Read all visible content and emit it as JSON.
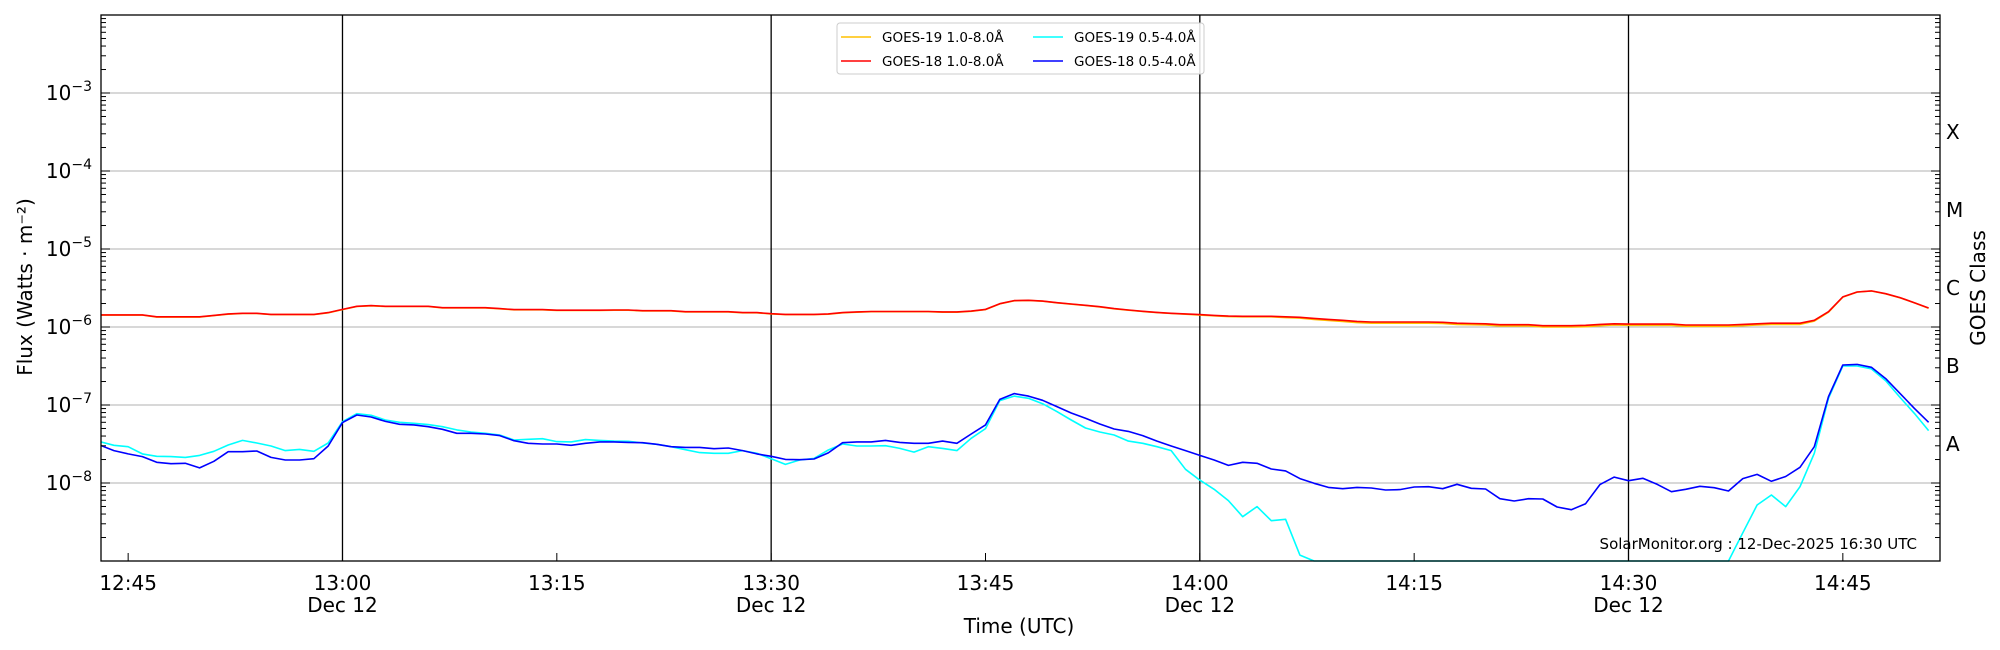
{
  "chart_data": {
    "type": "line",
    "title": "",
    "xlabel": "Time (UTC)",
    "ylabel": "Flux (Watts · m⁻²)",
    "ylabel_right": "GOES Class",
    "yscale": "log",
    "ylim": [
      1e-09,
      0.01
    ],
    "grid": "horizontal at each decade",
    "x_start_time": "12:43",
    "x_interval_minutes": 1,
    "xlim_minutes_from_start": [
      0.1,
      128.8
    ],
    "xticks": [
      {
        "minute": 2,
        "label": "12:45",
        "date": ""
      },
      {
        "minute": 17,
        "label": "13:00",
        "date": "Dec 12"
      },
      {
        "minute": 32,
        "label": "13:15",
        "date": ""
      },
      {
        "minute": 47,
        "label": "13:30",
        "date": "Dec 12"
      },
      {
        "minute": 62,
        "label": "13:45",
        "date": ""
      },
      {
        "minute": 77,
        "label": "14:00",
        "date": "Dec 12"
      },
      {
        "minute": 92,
        "label": "14:15",
        "date": ""
      },
      {
        "minute": 107,
        "label": "14:30",
        "date": "Dec 12"
      },
      {
        "minute": 122,
        "label": "14:45",
        "date": ""
      }
    ],
    "vertical_markers_minutes": [
      17,
      47,
      77,
      107
    ],
    "yticks": [
      {
        "value": 0.001,
        "base": "10",
        "exp": "−3"
      },
      {
        "value": 0.0001,
        "base": "10",
        "exp": "−4"
      },
      {
        "value": 1e-05,
        "base": "10",
        "exp": "−5"
      },
      {
        "value": 1e-06,
        "base": "10",
        "exp": "−6"
      },
      {
        "value": 1e-07,
        "base": "10",
        "exp": "−7"
      },
      {
        "value": 1e-08,
        "base": "10",
        "exp": "−8"
      }
    ],
    "goes_classes": [
      {
        "label": "X",
        "value": 0.000316
      },
      {
        "label": "M",
        "value": 3.16e-05
      },
      {
        "label": "C",
        "value": 3.16e-06
      },
      {
        "label": "B",
        "value": 3.16e-07
      },
      {
        "label": "A",
        "value": 3.16e-08
      }
    ],
    "legend": {
      "placement": "top-center",
      "columns": 2
    },
    "series": [
      {
        "name": "GOES-19 1.0-8.0Å",
        "color": "#ffc000",
        "values": [
          1.42e-06,
          1.42e-06,
          1.42e-06,
          1.42e-06,
          1.34e-06,
          1.34e-06,
          1.34e-06,
          1.34e-06,
          1.4e-06,
          1.46e-06,
          1.49e-06,
          1.49e-06,
          1.44e-06,
          1.44e-06,
          1.44e-06,
          1.44e-06,
          1.52e-06,
          1.67e-06,
          1.83e-06,
          1.87e-06,
          1.83e-06,
          1.83e-06,
          1.83e-06,
          1.83e-06,
          1.76e-06,
          1.76e-06,
          1.76e-06,
          1.76e-06,
          1.71e-06,
          1.66e-06,
          1.66e-06,
          1.66e-06,
          1.63e-06,
          1.63e-06,
          1.63e-06,
          1.63e-06,
          1.64e-06,
          1.64e-06,
          1.61e-06,
          1.61e-06,
          1.61e-06,
          1.56e-06,
          1.56e-06,
          1.56e-06,
          1.56e-06,
          1.52e-06,
          1.52e-06,
          1.47e-06,
          1.44e-06,
          1.44e-06,
          1.44e-06,
          1.46e-06,
          1.52e-06,
          1.55e-06,
          1.57e-06,
          1.57e-06,
          1.57e-06,
          1.57e-06,
          1.57e-06,
          1.55e-06,
          1.55e-06,
          1.59e-06,
          1.67e-06,
          1.98e-06,
          2.17e-06,
          2.19e-06,
          2.14e-06,
          2.04e-06,
          1.96e-06,
          1.89e-06,
          1.81e-06,
          1.71e-06,
          1.64e-06,
          1.58e-06,
          1.53e-06,
          1.49e-06,
          1.46e-06,
          1.42e-06,
          1.39e-06,
          1.36e-06,
          1.35e-06,
          1.35e-06,
          1.35e-06,
          1.32e-06,
          1.3e-06,
          1.25e-06,
          1.21e-06,
          1.18e-06,
          1.14e-06,
          1.12e-06,
          1.12e-06,
          1.12e-06,
          1.12e-06,
          1.12e-06,
          1.11e-06,
          1.08e-06,
          1.07e-06,
          1.06e-06,
          1.03e-06,
          1.03e-06,
          1.03e-06,
          1e-06,
          1e-06,
          1e-06,
          1.01e-06,
          1.04e-06,
          1.06e-06,
          1.05e-06,
          1.05e-06,
          1.05e-06,
          1.05e-06,
          1.02e-06,
          1.02e-06,
          1.02e-06,
          1.02e-06,
          1.04e-06,
          1.06e-06,
          1.08e-06,
          1.08e-06,
          1.08e-06,
          1.19e-06,
          1.55e-06,
          2.42e-06,
          2.8e-06,
          2.89e-06,
          2.66e-06,
          2.37e-06,
          2.04e-06,
          1.74e-06
        ]
      },
      {
        "name": "GOES-18 1.0-8.0Å",
        "color": "#ff0000",
        "values": [
          1.43e-06,
          1.43e-06,
          1.43e-06,
          1.43e-06,
          1.35e-06,
          1.35e-06,
          1.35e-06,
          1.35e-06,
          1.41e-06,
          1.47e-06,
          1.5e-06,
          1.5e-06,
          1.45e-06,
          1.45e-06,
          1.45e-06,
          1.45e-06,
          1.53e-06,
          1.68e-06,
          1.84e-06,
          1.88e-06,
          1.84e-06,
          1.84e-06,
          1.84e-06,
          1.84e-06,
          1.77e-06,
          1.77e-06,
          1.77e-06,
          1.77e-06,
          1.72e-06,
          1.67e-06,
          1.67e-06,
          1.67e-06,
          1.64e-06,
          1.64e-06,
          1.64e-06,
          1.64e-06,
          1.65e-06,
          1.65e-06,
          1.62e-06,
          1.62e-06,
          1.62e-06,
          1.57e-06,
          1.57e-06,
          1.57e-06,
          1.57e-06,
          1.53e-06,
          1.53e-06,
          1.48e-06,
          1.45e-06,
          1.45e-06,
          1.45e-06,
          1.47e-06,
          1.53e-06,
          1.56e-06,
          1.58e-06,
          1.58e-06,
          1.58e-06,
          1.58e-06,
          1.58e-06,
          1.56e-06,
          1.56e-06,
          1.6e-06,
          1.68e-06,
          1.99e-06,
          2.18e-06,
          2.2e-06,
          2.15e-06,
          2.05e-06,
          1.97e-06,
          1.9e-06,
          1.82e-06,
          1.72e-06,
          1.65e-06,
          1.59e-06,
          1.54e-06,
          1.5e-06,
          1.47e-06,
          1.44e-06,
          1.41e-06,
          1.38e-06,
          1.37e-06,
          1.37e-06,
          1.37e-06,
          1.35e-06,
          1.33e-06,
          1.29e-06,
          1.25e-06,
          1.22e-06,
          1.18e-06,
          1.16e-06,
          1.16e-06,
          1.16e-06,
          1.16e-06,
          1.16e-06,
          1.15e-06,
          1.12e-06,
          1.11e-06,
          1.1e-06,
          1.07e-06,
          1.07e-06,
          1.07e-06,
          1.04e-06,
          1.04e-06,
          1.04e-06,
          1.05e-06,
          1.08e-06,
          1.1e-06,
          1.09e-06,
          1.09e-06,
          1.09e-06,
          1.09e-06,
          1.06e-06,
          1.06e-06,
          1.06e-06,
          1.06e-06,
          1.08e-06,
          1.1e-06,
          1.12e-06,
          1.12e-06,
          1.12e-06,
          1.22e-06,
          1.57e-06,
          2.43e-06,
          2.81e-06,
          2.9e-06,
          2.67e-06,
          2.38e-06,
          2.05e-06,
          1.75e-06
        ]
      },
      {
        "name": "GOES-19 0.5-4.0Å",
        "color": "#00ffff",
        "values": [
          3.39e-08,
          3.04e-08,
          2.92e-08,
          2.36e-08,
          2.2e-08,
          2.18e-08,
          2.13e-08,
          2.26e-08,
          2.55e-08,
          3.07e-08,
          3.52e-08,
          3.26e-08,
          2.98e-08,
          2.6e-08,
          2.7e-08,
          2.55e-08,
          3.26e-08,
          6.11e-08,
          7.74e-08,
          7.38e-08,
          6.43e-08,
          6e-08,
          5.82e-08,
          5.6e-08,
          5.27e-08,
          4.79e-08,
          4.51e-08,
          4.34e-08,
          4.12e-08,
          3.56e-08,
          3.63e-08,
          3.7e-08,
          3.39e-08,
          3.36e-08,
          3.6e-08,
          3.52e-08,
          3.45e-08,
          3.42e-08,
          3.26e-08,
          3.13e-08,
          2.92e-08,
          2.67e-08,
          2.45e-08,
          2.4e-08,
          2.4e-08,
          2.6e-08,
          2.4e-08,
          2.05e-08,
          1.73e-08,
          1.97e-08,
          2.07e-08,
          2.65e-08,
          3.16e-08,
          2.98e-08,
          2.98e-08,
          3.01e-08,
          2.78e-08,
          2.49e-08,
          2.92e-08,
          2.78e-08,
          2.6e-08,
          3.74e-08,
          4.98e-08,
          1.14e-07,
          1.3e-07,
          1.22e-07,
          1.04e-07,
          8.22e-08,
          6.43e-08,
          5.07e-08,
          4.51e-08,
          4.12e-08,
          3.45e-08,
          3.23e-08,
          2.92e-08,
          2.6e-08,
          1.5e-08,
          1.09e-08,
          8.3e-09,
          5.94e-09,
          3.7e-09,
          4.98e-09,
          3.29e-09,
          3.42e-09,
          1.19e-09,
          1e-09,
          1e-09,
          1e-09,
          1e-09,
          1e-09,
          1e-09,
          1e-09,
          1e-09,
          1e-09,
          1e-09,
          1e-09,
          1e-09,
          1e-09,
          1e-09,
          1e-09,
          1e-09,
          1e-09,
          1e-09,
          1e-09,
          1e-09,
          1e-09,
          1e-09,
          1e-09,
          1e-09,
          1e-09,
          1e-09,
          1e-09,
          1e-09,
          1e-09,
          1e-09,
          2.3e-09,
          5.22e-09,
          7.01e-09,
          4.98e-09,
          8.97e-09,
          2.4e-08,
          1.22e-07,
          3.16e-07,
          3.16e-07,
          2.9e-07,
          2.05e-07,
          1.25e-07,
          7.82e-08,
          4.69e-08
        ]
      },
      {
        "name": "GOES-18 0.5-4.0Å",
        "color": "#0000ff",
        "values": [
          3.07e-08,
          2.6e-08,
          2.36e-08,
          2.18e-08,
          1.84e-08,
          1.77e-08,
          1.79e-08,
          1.56e-08,
          1.9e-08,
          2.52e-08,
          2.52e-08,
          2.57e-08,
          2.13e-08,
          1.97e-08,
          1.97e-08,
          2.05e-08,
          2.98e-08,
          5.94e-08,
          7.45e-08,
          7.01e-08,
          6.17e-08,
          5.65e-08,
          5.55e-08,
          5.27e-08,
          4.88e-08,
          4.34e-08,
          4.34e-08,
          4.25e-08,
          4.05e-08,
          3.49e-08,
          3.23e-08,
          3.16e-08,
          3.16e-08,
          3.04e-08,
          3.23e-08,
          3.36e-08,
          3.36e-08,
          3.32e-08,
          3.29e-08,
          3.13e-08,
          2.92e-08,
          2.86e-08,
          2.86e-08,
          2.75e-08,
          2.81e-08,
          2.6e-08,
          2.36e-08,
          2.2e-08,
          2.01e-08,
          1.99e-08,
          2.03e-08,
          2.43e-08,
          3.29e-08,
          3.36e-08,
          3.36e-08,
          3.52e-08,
          3.32e-08,
          3.23e-08,
          3.23e-08,
          3.45e-08,
          3.23e-08,
          4.25e-08,
          5.55e-08,
          1.18e-07,
          1.4e-07,
          1.3e-07,
          1.15e-07,
          9.53e-08,
          7.89e-08,
          6.75e-08,
          5.7e-08,
          4.92e-08,
          4.59e-08,
          4.05e-08,
          3.45e-08,
          2.98e-08,
          2.6e-08,
          2.26e-08,
          1.97e-08,
          1.68e-08,
          1.84e-08,
          1.79e-08,
          1.51e-08,
          1.43e-08,
          1.14e-08,
          9.9e-09,
          8.79e-09,
          8.45e-09,
          8.79e-09,
          8.63e-09,
          8.13e-09,
          8.22e-09,
          8.89e-09,
          8.97e-09,
          8.45e-09,
          9.62e-09,
          8.55e-09,
          8.37e-09,
          6.3e-09,
          5.87e-09,
          6.3e-09,
          6.24e-09,
          4.92e-09,
          4.55e-09,
          5.43e-09,
          9.53e-09,
          1.19e-08,
          1.07e-08,
          1.15e-08,
          9.62e-09,
          7.74e-09,
          8.3e-09,
          9.06e-09,
          8.71e-09,
          7.89e-09,
          1.14e-08,
          1.29e-08,
          1.05e-08,
          1.21e-08,
          1.59e-08,
          2.92e-08,
          1.28e-07,
          3.26e-07,
          3.32e-07,
          3.04e-07,
          2.18e-07,
          1.41e-07,
          9.06e-08,
          6e-08
        ]
      }
    ],
    "annotation": "SolarMonitor.org : 12-Dec-2025 16:30 UTC"
  }
}
